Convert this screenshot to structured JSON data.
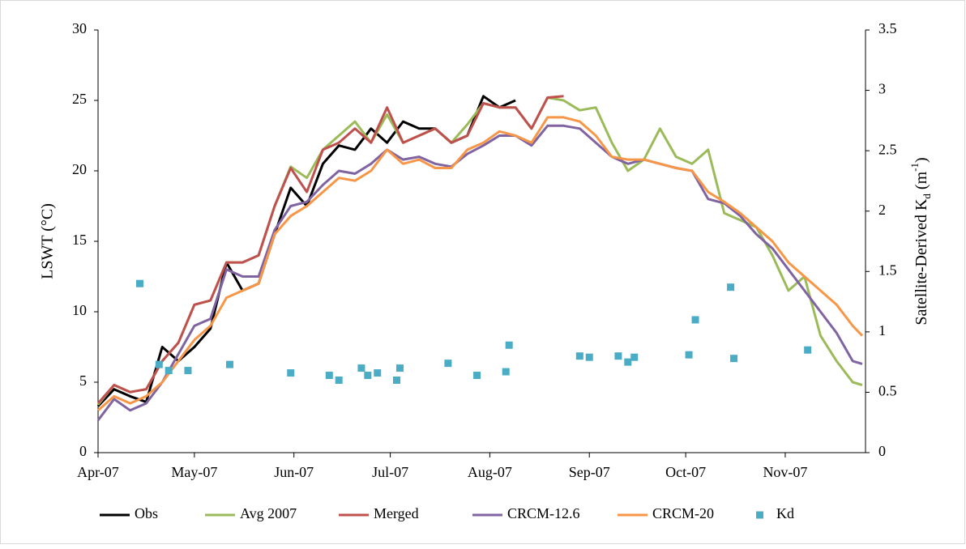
{
  "chart_data": {
    "type": "line",
    "ylabel": "LSWT (°C)",
    "y2label_parts": [
      {
        "text": "Satellite-Derived K",
        "shift": "normal"
      },
      {
        "text": "d",
        "shift": "sub"
      },
      {
        "text": " (m",
        "shift": "normal"
      },
      {
        "text": "-1",
        "shift": "super"
      },
      {
        "text": ")",
        "shift": "normal"
      }
    ],
    "x": [
      91,
      96,
      101,
      106,
      111,
      116,
      121,
      126,
      131,
      136,
      141,
      146,
      151,
      156,
      161,
      166,
      171,
      176,
      181,
      186,
      191,
      196,
      201,
      206,
      211,
      216,
      221,
      226,
      231,
      236,
      241,
      246,
      251,
      256,
      261,
      266,
      271,
      276,
      281,
      286,
      291,
      296,
      301,
      306,
      311,
      316,
      321,
      326,
      329
    ],
    "xlim": [
      91,
      330
    ],
    "xticks": [
      {
        "value": 91,
        "label": "Apr-07"
      },
      {
        "value": 121,
        "label": "May-07"
      },
      {
        "value": 152,
        "label": "Jun-07"
      },
      {
        "value": 182,
        "label": "Jul-07"
      },
      {
        "value": 213,
        "label": "Aug-07"
      },
      {
        "value": 244,
        "label": "Sep-07"
      },
      {
        "value": 274,
        "label": "Oct-07"
      },
      {
        "value": 305,
        "label": "Nov-07"
      }
    ],
    "ylim": [
      0,
      30
    ],
    "yticks": [
      0,
      5,
      10,
      15,
      20,
      25,
      30
    ],
    "y2lim": [
      0,
      3.5
    ],
    "y2ticks": [
      0,
      0.5,
      1,
      1.5,
      2,
      2.5,
      3,
      3.5
    ],
    "grid": false,
    "legend": "bottom",
    "series": [
      {
        "name": "Obs",
        "color": "#000000",
        "values": [
          3.3,
          4.5,
          4.0,
          3.6,
          7.5,
          6.5,
          7.5,
          8.8,
          13.5,
          11.5,
          12.0,
          15.5,
          18.8,
          17.5,
          20.5,
          21.8,
          21.5,
          23.0,
          22.0,
          23.5,
          23.0,
          23.0,
          22.0,
          22.5,
          25.3,
          24.5,
          25.0,
          null,
          null,
          null,
          null,
          null,
          null,
          null,
          null,
          null,
          null,
          null,
          null,
          null,
          null,
          null,
          null,
          null,
          null,
          null,
          null,
          null,
          null
        ]
      },
      {
        "name": "Avg 2007",
        "color": "#9bbb59",
        "values": [
          3.4,
          4.8,
          4.3,
          4.5,
          6.5,
          7.8,
          10.5,
          10.8,
          13.5,
          13.5,
          14.0,
          17.5,
          20.3,
          19.5,
          21.5,
          22.5,
          23.5,
          22.0,
          24.0,
          22.0,
          22.5,
          23.0,
          22.0,
          23.3,
          24.8,
          24.5,
          24.5,
          23.0,
          25.2,
          25.0,
          24.3,
          24.5,
          22.0,
          20.0,
          20.8,
          23.0,
          21.0,
          20.5,
          21.5,
          17.0,
          16.5,
          16.0,
          14.0,
          11.5,
          12.5,
          8.3,
          6.5,
          5.0,
          4.8
        ]
      },
      {
        "name": "Merged",
        "color": "#c0504d",
        "values": [
          3.5,
          4.8,
          4.3,
          4.5,
          6.5,
          7.8,
          10.5,
          10.8,
          13.5,
          13.5,
          14.0,
          17.5,
          20.2,
          18.5,
          21.5,
          22.0,
          23.0,
          22.0,
          24.5,
          22.0,
          22.5,
          23.0,
          22.0,
          22.5,
          24.8,
          24.5,
          24.5,
          23.0,
          25.2,
          25.3,
          null,
          null,
          null,
          null,
          null,
          null,
          null,
          null,
          null,
          null,
          null,
          null,
          null,
          null,
          null,
          null,
          null,
          null,
          null
        ]
      },
      {
        "name": "CRCM-12.6",
        "color": "#8064a2",
        "values": [
          2.3,
          3.8,
          3.0,
          3.5,
          5.0,
          7.0,
          9.0,
          9.5,
          13.0,
          12.5,
          12.5,
          15.8,
          17.5,
          17.8,
          19.0,
          20.0,
          19.8,
          20.5,
          21.5,
          20.8,
          21.0,
          20.5,
          20.3,
          21.2,
          21.8,
          22.5,
          22.5,
          21.8,
          23.2,
          23.2,
          23.0,
          22.0,
          21.0,
          20.5,
          20.8,
          20.5,
          20.2,
          20.0,
          18.0,
          17.7,
          16.8,
          15.5,
          14.5,
          13.0,
          11.5,
          10.0,
          8.5,
          6.5,
          6.3
        ]
      },
      {
        "name": "CRCM-20",
        "color": "#f79646",
        "values": [
          3.0,
          4.0,
          3.5,
          4.0,
          5.0,
          6.5,
          8.0,
          9.0,
          11.0,
          11.5,
          12.0,
          15.5,
          16.8,
          17.5,
          18.5,
          19.5,
          19.3,
          20.0,
          21.5,
          20.5,
          20.8,
          20.2,
          20.2,
          21.5,
          22.0,
          22.8,
          22.5,
          22.0,
          23.8,
          23.8,
          23.5,
          22.5,
          21.0,
          20.8,
          20.8,
          20.5,
          20.2,
          20.0,
          18.5,
          17.8,
          17.0,
          16.0,
          15.0,
          13.5,
          12.5,
          11.5,
          10.5,
          9.0,
          8.3
        ]
      },
      {
        "name": "Kd",
        "type": "scatter",
        "axis": "y2",
        "color": "#4bacc6",
        "x": [
          104,
          110,
          113,
          119,
          132,
          151,
          163,
          166,
          173,
          175,
          178,
          184,
          185,
          200,
          209,
          218,
          219,
          241,
          244,
          253,
          256,
          258,
          275,
          277,
          288,
          289,
          312
        ],
        "values": [
          1.4,
          0.73,
          0.68,
          0.68,
          0.73,
          0.66,
          0.64,
          0.6,
          0.7,
          0.64,
          0.66,
          0.6,
          0.7,
          0.74,
          0.64,
          0.67,
          0.89,
          0.8,
          0.79,
          0.8,
          0.75,
          0.79,
          0.81,
          1.1,
          1.37,
          0.78,
          0.85
        ]
      }
    ]
  }
}
